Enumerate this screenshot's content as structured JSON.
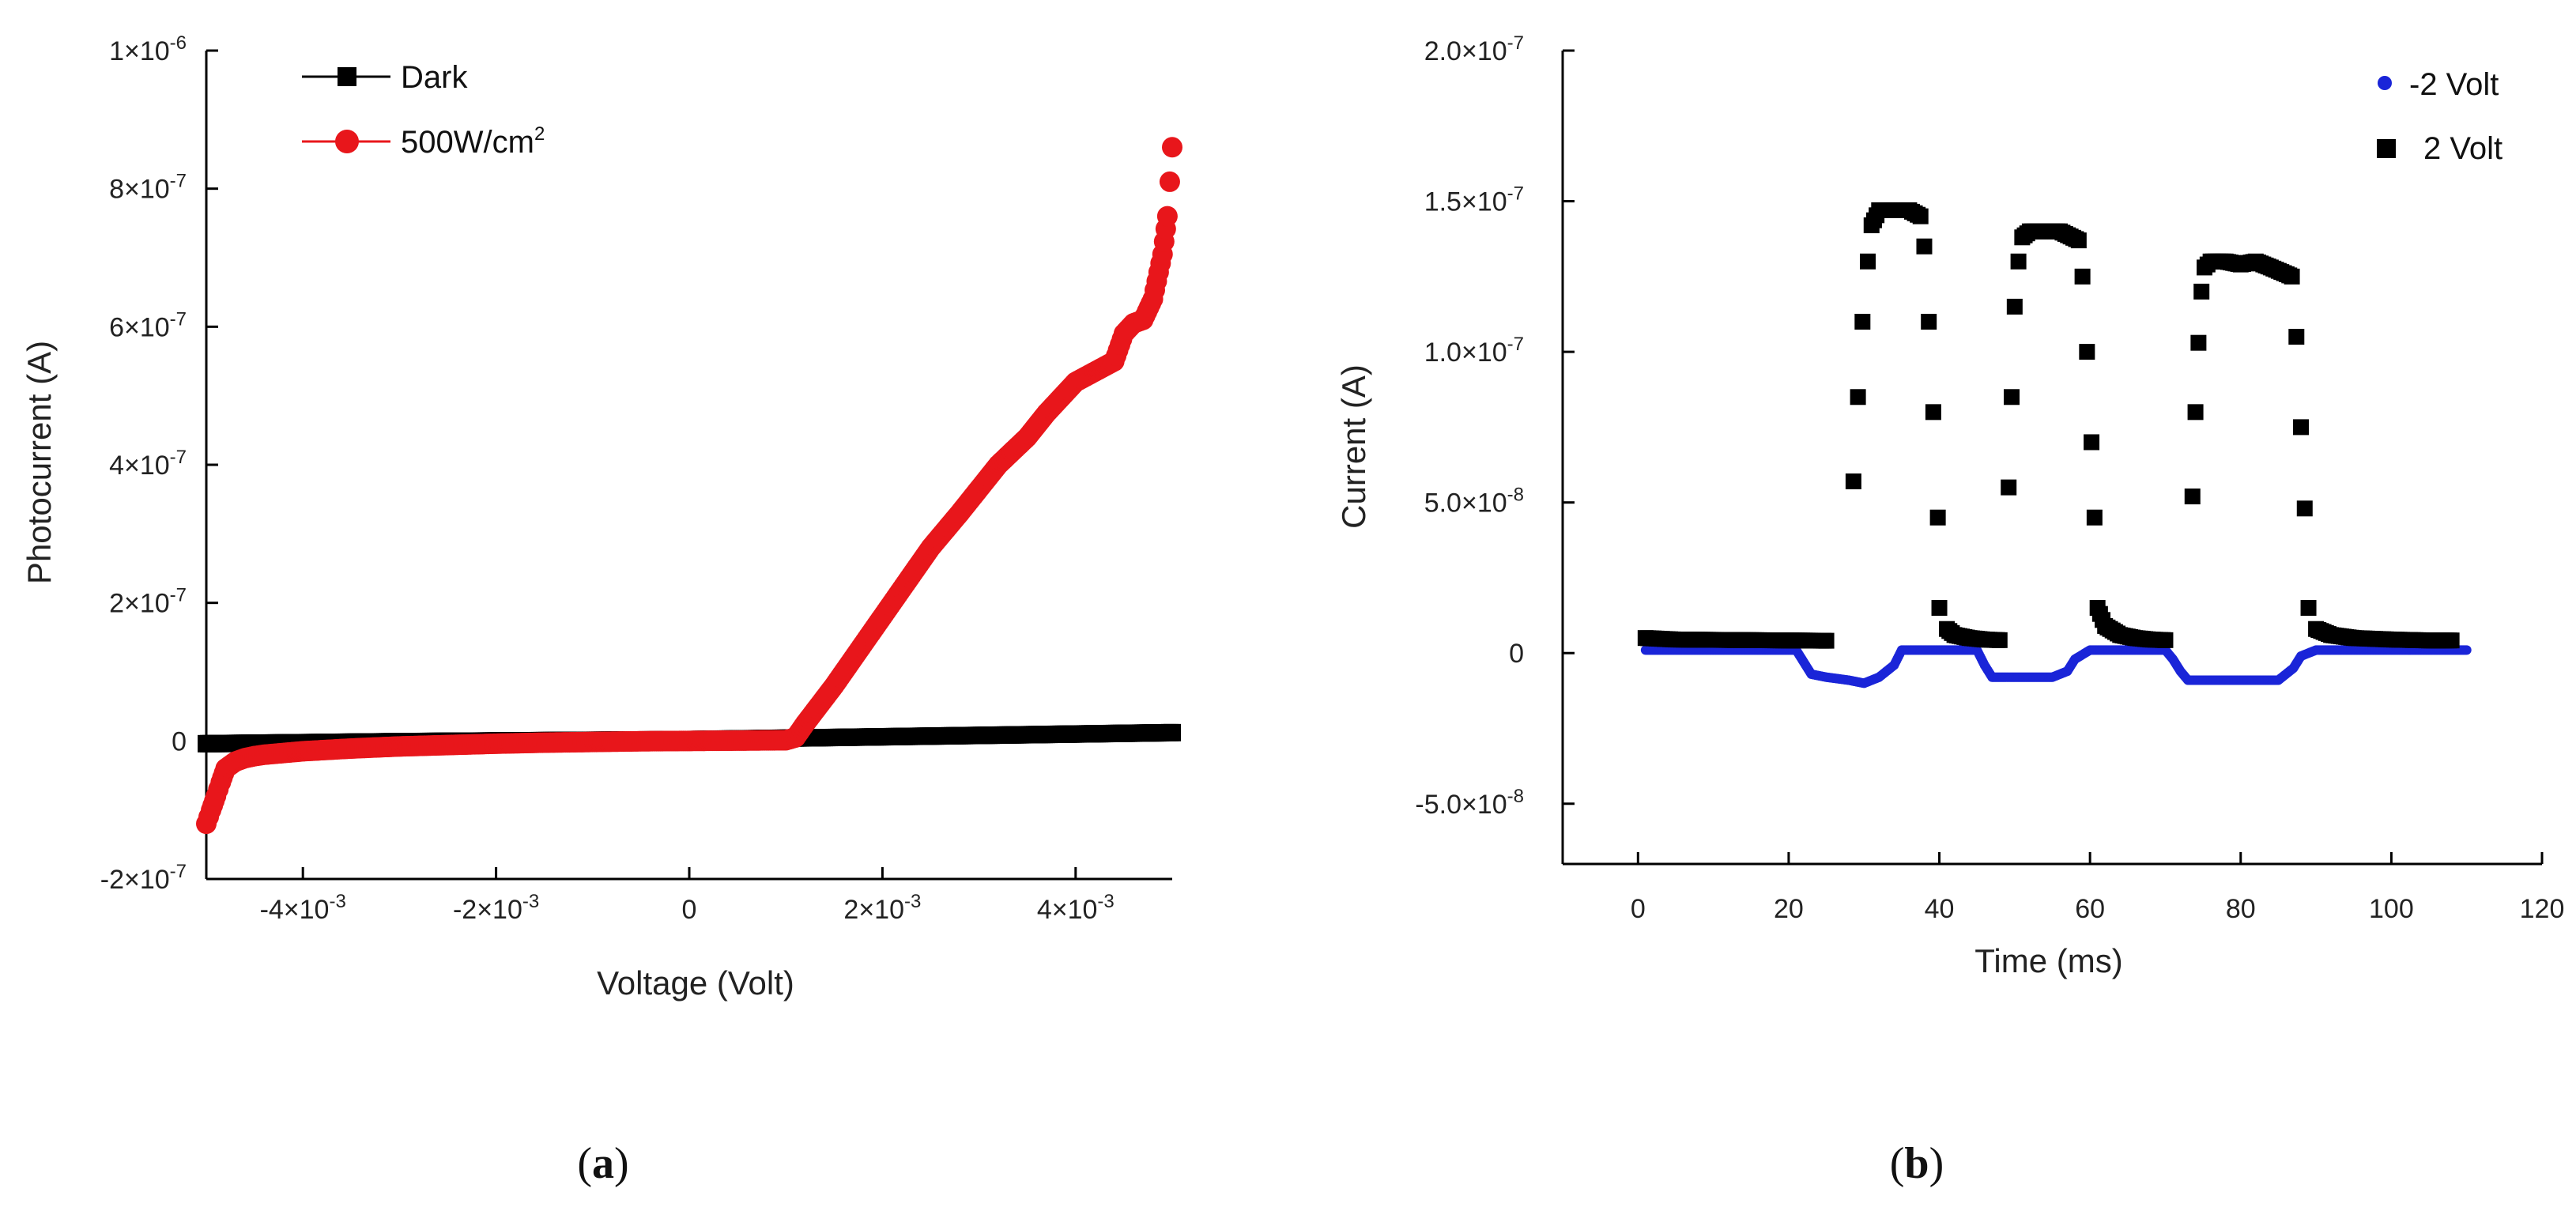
{
  "chart_data": [
    {
      "type": "scatter",
      "panel_label": "a",
      "xlabel": "Voltage (Volt)",
      "ylabel": "Photocurrent (A)",
      "xlim": [
        -0.005,
        0.005
      ],
      "ylim": [
        -2e-07,
        1e-06
      ],
      "x_ticks": [
        {
          "value": -0.004,
          "mant": "-4×10",
          "exp": "-3"
        },
        {
          "value": -0.002,
          "mant": "-2×10",
          "exp": "-3"
        },
        {
          "value": 0,
          "mant": "0",
          "exp": ""
        },
        {
          "value": 0.002,
          "mant": "2×10",
          "exp": "-3"
        },
        {
          "value": 0.004,
          "mant": "4×10",
          "exp": "-3"
        }
      ],
      "y_ticks": [
        {
          "value": -2e-07,
          "mant": "-2×10",
          "exp": "-7"
        },
        {
          "value": 0,
          "mant": "0",
          "exp": ""
        },
        {
          "value": 2e-07,
          "mant": "2×10",
          "exp": "-7"
        },
        {
          "value": 4e-07,
          "mant": "4×10",
          "exp": "-7"
        },
        {
          "value": 6e-07,
          "mant": "6×10",
          "exp": "-7"
        },
        {
          "value": 8e-07,
          "mant": "8×10",
          "exp": "-7"
        },
        {
          "value": 1e-06,
          "mant": "1×10",
          "exp": "-6"
        }
      ],
      "legend": [
        {
          "name": "Dark",
          "color": "#000000",
          "marker": "square"
        },
        {
          "name": "500W/cm",
          "sup": "2",
          "color": "#e8161b",
          "marker": "circle"
        }
      ],
      "series": [
        {
          "name": "Dark",
          "color": "#000000",
          "marker": "square",
          "x": [
            -0.005,
            -0.004,
            -0.003,
            -0.002,
            -0.001,
            0,
            0.001,
            0.002,
            0.003,
            0.004,
            0.005
          ],
          "y": [
            -4e-09,
            -2.5e-09,
            -1e-09,
            0,
            1e-09,
            2e-09,
            4e-09,
            6e-09,
            8e-09,
            1e-08,
            1.2e-08
          ]
        },
        {
          "name": "500W/cm2",
          "color": "#e8161b",
          "marker": "circle",
          "x": [
            -0.005,
            -0.00495,
            -0.0049,
            -0.00485,
            -0.0048,
            -0.0047,
            -0.0046,
            -0.0045,
            -0.0044,
            -0.004,
            -0.0035,
            -0.003,
            -0.0025,
            -0.002,
            -0.0015,
            -0.001,
            -0.0005,
            0,
            0.0005,
            0.001,
            0.0011,
            0.0012,
            0.0015,
            0.0018,
            0.002,
            0.0022,
            0.0025,
            0.0028,
            0.003,
            0.0032,
            0.0035,
            0.0037,
            0.0039,
            0.004,
            0.0042,
            0.0044,
            0.0045,
            0.0046,
            0.0047,
            0.0048,
            0.0049,
            0.00495,
            0.005
          ],
          "y": [
            -1.2e-07,
            -1e-07,
            -8e-08,
            -6e-08,
            -4e-08,
            -3e-08,
            -2.5e-08,
            -2.2e-08,
            -2e-08,
            -1.5e-08,
            -1.1e-08,
            -8e-09,
            -6e-09,
            -4e-09,
            -2.5e-09,
            -1.5e-09,
            -5e-10,
            0,
            5e-10,
            1e-09,
            5e-09,
            2.5e-08,
            8e-08,
            1.4e-07,
            1.8e-07,
            2.2e-07,
            2.8e-07,
            3.3e-07,
            3.65e-07,
            4e-07,
            4.4e-07,
            4.75e-07,
            5.05e-07,
            5.2e-07,
            5.35e-07,
            5.5e-07,
            5.9e-07,
            6.05e-07,
            6.1e-07,
            6.4e-07,
            7.05e-07,
            7.6e-07,
            8.6e-07
          ]
        }
      ]
    },
    {
      "type": "scatter",
      "panel_label": "b",
      "xlabel": "Time (ms)",
      "ylabel": "Current (A)",
      "xlim": [
        -10,
        120
      ],
      "ylim": [
        -7e-08,
        2e-07
      ],
      "x_ticks": [
        {
          "value": 0,
          "mant": "0",
          "exp": ""
        },
        {
          "value": 20,
          "mant": "20",
          "exp": ""
        },
        {
          "value": 40,
          "mant": "40",
          "exp": ""
        },
        {
          "value": 60,
          "mant": "60",
          "exp": ""
        },
        {
          "value": 80,
          "mant": "80",
          "exp": ""
        },
        {
          "value": 100,
          "mant": "100",
          "exp": ""
        },
        {
          "value": 120,
          "mant": "120",
          "exp": ""
        }
      ],
      "y_ticks": [
        {
          "value": -5e-08,
          "mant": "-5.0×10",
          "exp": "-8"
        },
        {
          "value": 0,
          "mant": "0",
          "exp": ""
        },
        {
          "value": 5e-08,
          "mant": "5.0×10",
          "exp": "-8"
        },
        {
          "value": 1e-07,
          "mant": "1.0×10",
          "exp": "-7"
        },
        {
          "value": 1.5e-07,
          "mant": "1.5×10",
          "exp": "-7"
        },
        {
          "value": 2e-07,
          "mant": "2.0×10",
          "exp": "-7"
        }
      ],
      "legend": [
        {
          "name": "-2 Volt",
          "color": "#1a25d8",
          "marker": "circle"
        },
        {
          "name": "2 Volt",
          "color": "#000000",
          "marker": "square"
        }
      ],
      "series": [
        {
          "name": "-2 Volt",
          "color": "#1a25d8",
          "marker": "circle",
          "x": [
            1,
            10,
            21,
            22,
            23,
            25,
            28,
            30,
            32,
            34,
            35,
            40,
            45,
            46,
            47,
            50,
            55,
            57,
            58,
            60,
            65,
            70,
            71,
            72,
            73,
            75,
            80,
            85,
            87,
            88,
            90,
            100,
            110
          ],
          "y": [
            1e-09,
            1e-09,
            1e-09,
            -3e-09,
            -7e-09,
            -8e-09,
            -9e-09,
            -1e-08,
            -8e-09,
            -4e-09,
            1e-09,
            1e-09,
            1e-09,
            -4e-09,
            -8e-09,
            -8e-09,
            -8e-09,
            -6e-09,
            -2e-09,
            1e-09,
            1e-09,
            1e-09,
            -2e-09,
            -6e-09,
            -9e-09,
            -9e-09,
            -9e-09,
            -9e-09,
            -5e-09,
            -1e-09,
            1e-09,
            1e-09,
            1e-09
          ]
        },
        {
          "name": "2 Volt",
          "color": "#000000",
          "marker": "square",
          "x": [
            1,
            5,
            10,
            15,
            20,
            25,
            28.6,
            29.2,
            29.8,
            30.5,
            31,
            32,
            34,
            36,
            37.5,
            38,
            38.6,
            39.2,
            39.8,
            40,
            41,
            42,
            44,
            46,
            48,
            49.2,
            49.6,
            50,
            50.5,
            51,
            52,
            54,
            56,
            58.5,
            59,
            59.6,
            60.2,
            60.6,
            61,
            62,
            64,
            66,
            68,
            70,
            73.6,
            74,
            74.4,
            74.8,
            75.2,
            76,
            78,
            80,
            82,
            84,
            86.8,
            87.4,
            88,
            88.5,
            89,
            90,
            92,
            95,
            100,
            105,
            108
          ],
          "y": [
            5e-09,
            4.5e-09,
            4.4e-09,
            4.3e-09,
            4.2e-09,
            4.1e-09,
            5.7e-08,
            8.5e-08,
            1.1e-07,
            1.3e-07,
            1.42e-07,
            1.47e-07,
            1.47e-07,
            1.47e-07,
            1.45e-07,
            1.35e-07,
            1.1e-07,
            8e-08,
            4.5e-08,
            1.5e-08,
            8e-09,
            6e-09,
            5e-09,
            4.5e-09,
            4.3e-09,
            5.5e-08,
            8.5e-08,
            1.15e-07,
            1.3e-07,
            1.38e-07,
            1.4e-07,
            1.4e-07,
            1.4e-07,
            1.37e-07,
            1.25e-07,
            1e-07,
            7e-08,
            4.5e-08,
            1.5e-08,
            9e-09,
            6e-09,
            5e-09,
            4.5e-09,
            4.3e-09,
            5.2e-08,
            8e-08,
            1.03e-07,
            1.2e-07,
            1.28e-07,
            1.3e-07,
            1.3e-07,
            1.29e-07,
            1.3e-07,
            1.28e-07,
            1.25e-07,
            1.05e-07,
            7.5e-08,
            4.8e-08,
            1.5e-08,
            8e-09,
            6e-09,
            5e-09,
            4.5e-09,
            4.2e-09,
            4.2e-09
          ]
        }
      ]
    }
  ]
}
